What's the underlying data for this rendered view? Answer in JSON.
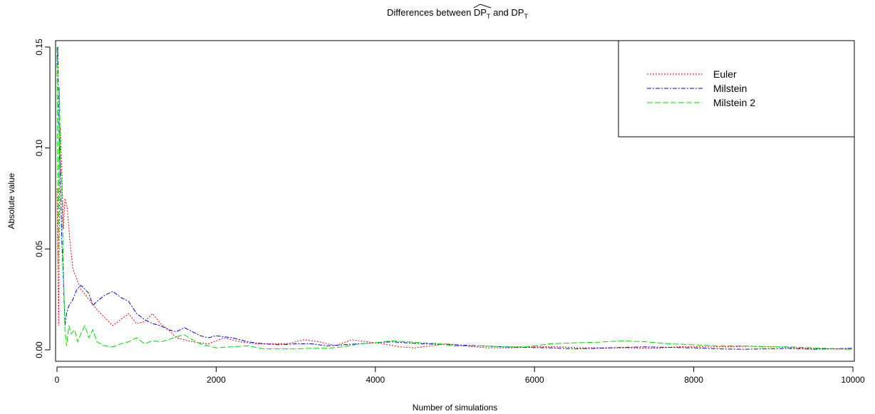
{
  "chart_data": {
    "type": "line",
    "title": {
      "main_prefix": "Differences between ",
      "symbol": "DP",
      "subscript": "T",
      "connector": " and ",
      "symbol2": "DP",
      "subscript2": "T"
    },
    "xlabel": "Number of simulations",
    "ylabel": "Absolute value",
    "xlim": [
      0,
      10000
    ],
    "ylim": [
      0,
      0.155
    ],
    "x_ticks": [
      0,
      2000,
      4000,
      6000,
      8000,
      10000
    ],
    "y_ticks": [
      0.0,
      0.05,
      0.1,
      0.15
    ],
    "x_tick_labels": [
      "0",
      "2000",
      "4000",
      "6000",
      "8000",
      "10000"
    ],
    "y_tick_labels": [
      "0.00",
      "0.05",
      "0.10",
      "0.15"
    ],
    "grid": false,
    "legend_position": "top-right",
    "series": [
      {
        "name": "Euler",
        "color": "#ff0000",
        "dash": "2,2",
        "x": [
          0,
          20,
          40,
          60,
          80,
          100,
          130,
          160,
          200,
          250,
          300,
          400,
          500,
          600,
          700,
          800,
          900,
          1000,
          1100,
          1200,
          1300,
          1400,
          1500,
          1700,
          1900,
          2100,
          2300,
          2500,
          2700,
          2900,
          3100,
          3300,
          3500,
          3700,
          3900,
          4100,
          4300,
          4500,
          4700,
          4900,
          5100,
          5400,
          5700,
          6000,
          6300,
          6600,
          6900,
          7200,
          7500,
          7800,
          8100,
          8400,
          8700,
          9000,
          9300,
          9600,
          10000
        ],
        "y": [
          0.08,
          0.012,
          0.11,
          0.09,
          0.06,
          0.075,
          0.07,
          0.055,
          0.04,
          0.035,
          0.03,
          0.025,
          0.02,
          0.016,
          0.012,
          0.015,
          0.018,
          0.013,
          0.014,
          0.018,
          0.013,
          0.01,
          0.006,
          0.004,
          0.003,
          0.006,
          0.004,
          0.003,
          0.003,
          0.003,
          0.005,
          0.004,
          0.002,
          0.005,
          0.004,
          0.003,
          0.0015,
          0.001,
          0.002,
          0.003,
          0.002,
          0.001,
          0.001,
          0.0015,
          0.0015,
          0.001,
          0.001,
          0.001,
          0.0008,
          0.0015,
          0.0015,
          0.0015,
          0.0018,
          0.0015,
          0.001,
          0.0005,
          0.0003
        ]
      },
      {
        "name": "Milstein",
        "color": "#0000ff",
        "dash": "6,2,2,2",
        "x": [
          0,
          10,
          20,
          30,
          40,
          60,
          80,
          100,
          120,
          150,
          200,
          250,
          300,
          350,
          400,
          450,
          500,
          600,
          700,
          800,
          900,
          1000,
          1100,
          1200,
          1300,
          1400,
          1500,
          1600,
          1700,
          1800,
          1900,
          2000,
          2200,
          2400,
          2600,
          2800,
          3000,
          3200,
          3400,
          3600,
          3800,
          4000,
          4200,
          4400,
          4600,
          4800,
          5000,
          5300,
          5600,
          5900,
          6200,
          6500,
          6800,
          7100,
          7400,
          7700,
          8000,
          8300,
          8600,
          8900,
          9200,
          9500,
          10000
        ],
        "y": [
          0.14,
          0.15,
          0.12,
          0.1,
          0.09,
          0.055,
          0.035,
          0.012,
          0.018,
          0.022,
          0.025,
          0.03,
          0.032,
          0.03,
          0.028,
          0.022,
          0.024,
          0.027,
          0.029,
          0.026,
          0.024,
          0.018,
          0.015,
          0.013,
          0.012,
          0.01,
          0.009,
          0.011,
          0.009,
          0.007,
          0.006,
          0.007,
          0.006,
          0.004,
          0.003,
          0.0025,
          0.003,
          0.003,
          0.002,
          0.0025,
          0.003,
          0.0035,
          0.004,
          0.0035,
          0.003,
          0.0028,
          0.0025,
          0.002,
          0.0015,
          0.0012,
          0.001,
          0.0005,
          0.0008,
          0.0012,
          0.0015,
          0.0012,
          0.001,
          0.0005,
          0.0003,
          0.0005,
          0.0007,
          0.0003,
          0.0008
        ]
      },
      {
        "name": "Milstein 2",
        "color": "#00dd00",
        "dash": "8,3",
        "x": [
          0,
          15,
          30,
          45,
          60,
          80,
          100,
          120,
          150,
          180,
          220,
          260,
          300,
          350,
          400,
          450,
          500,
          600,
          700,
          800,
          900,
          1000,
          1100,
          1200,
          1300,
          1400,
          1500,
          1600,
          1700,
          1800,
          1900,
          2000,
          2200,
          2400,
          2600,
          2800,
          3000,
          3200,
          3400,
          3600,
          3800,
          4000,
          4200,
          4400,
          4600,
          4800,
          5000,
          5300,
          5600,
          5900,
          6200,
          6500,
          6800,
          7100,
          7400,
          7700,
          8000,
          8300,
          8600,
          8900,
          9200,
          9500,
          10000
        ],
        "y": [
          0.15,
          0.04,
          0.13,
          0.09,
          0.085,
          0.04,
          0.01,
          0.002,
          0.012,
          0.008,
          0.01,
          0.004,
          0.008,
          0.012,
          0.006,
          0.01,
          0.004,
          0.002,
          0.0015,
          0.003,
          0.004,
          0.006,
          0.003,
          0.0045,
          0.004,
          0.005,
          0.0065,
          0.0075,
          0.005,
          0.003,
          0.002,
          0.001,
          0.0015,
          0.002,
          0.0005,
          0.0005,
          0.0005,
          0.0008,
          0.0008,
          0.0015,
          0.003,
          0.0035,
          0.0045,
          0.004,
          0.0035,
          0.003,
          0.002,
          0.002,
          0.0015,
          0.0015,
          0.003,
          0.0035,
          0.0038,
          0.0045,
          0.004,
          0.003,
          0.0025,
          0.002,
          0.002,
          0.0015,
          0.0015,
          0.001,
          0.0002
        ]
      }
    ]
  }
}
